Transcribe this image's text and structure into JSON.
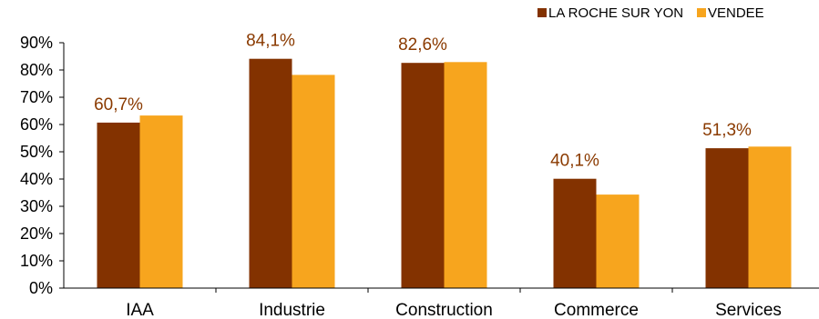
{
  "chart_data": {
    "type": "bar",
    "categories": [
      "IAA",
      "Industrie",
      "Construction",
      "Commerce",
      "Services"
    ],
    "series": [
      {
        "name": "LA ROCHE SUR YON",
        "values": [
          60.7,
          84.1,
          82.6,
          40.1,
          51.3
        ],
        "color": "#833200"
      },
      {
        "name": "VENDEE",
        "values": [
          63.3,
          78.2,
          82.9,
          34.3,
          51.9
        ],
        "color": "#F7A51E"
      }
    ],
    "data_labels": [
      "60,7%",
      "84,1%",
      "82,6%",
      "40,1%",
      "51,3%"
    ],
    "data_label_color": "#8A3A00",
    "yticks": [
      "0%",
      "10%",
      "20%",
      "30%",
      "40%",
      "50%",
      "60%",
      "70%",
      "80%",
      "90%"
    ],
    "ylim": [
      0,
      90
    ],
    "grid": false,
    "legend_position": "top-right"
  }
}
